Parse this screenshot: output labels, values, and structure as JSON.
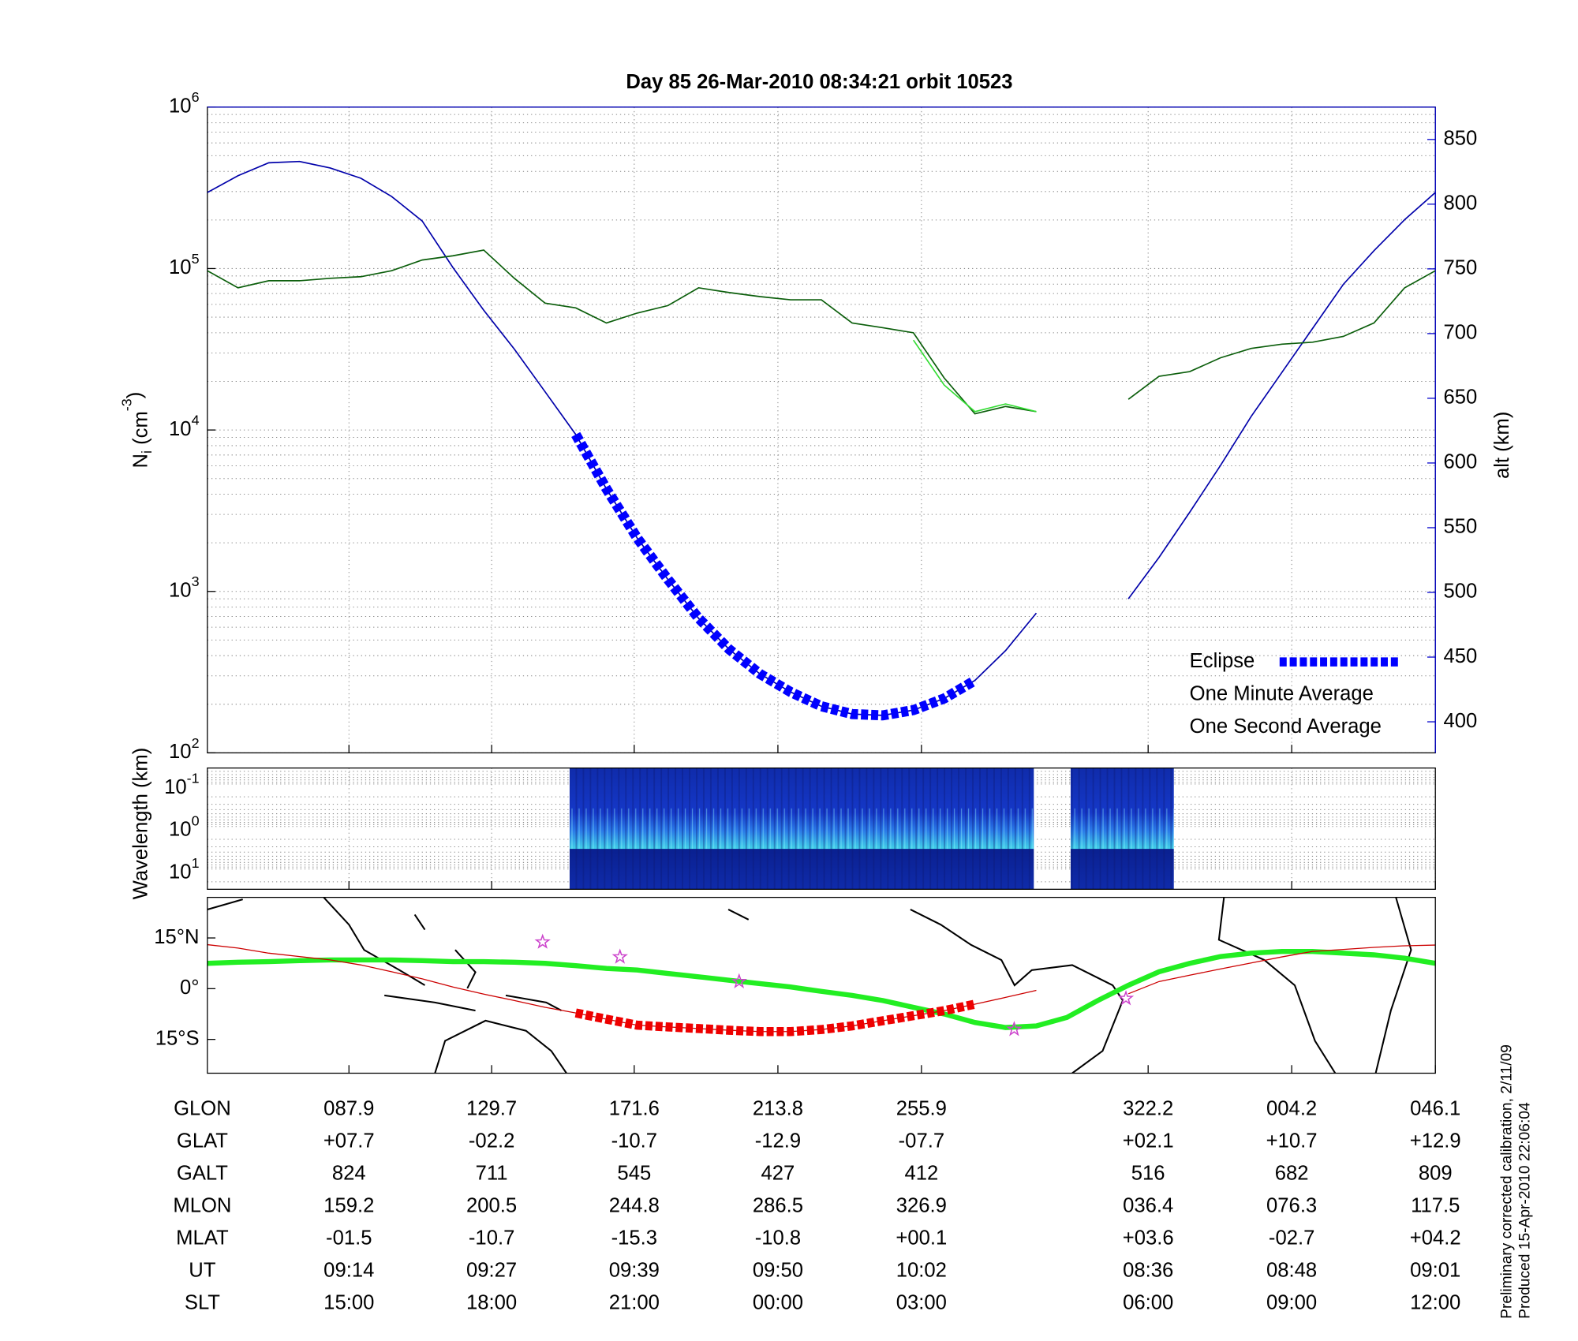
{
  "chart_data": [
    {
      "type": "line",
      "title": "Day 85  26-Mar-2010 08:34:21   orbit 10523",
      "ylabel": [
        "N",
        "i",
        " (cm",
        "-3",
        ")"
      ],
      "y2label": "alt (km)",
      "x": [
        0,
        2.5,
        5,
        7.5,
        10,
        12.5,
        15,
        17.5,
        20,
        22.5,
        25,
        27.5,
        30,
        32.5,
        35,
        37.5,
        40,
        42.5,
        45,
        47.5,
        50,
        52.5,
        55,
        57.5,
        60,
        62.5,
        65,
        67.5,
        70,
        72.5,
        75,
        77.5,
        80,
        82.5,
        85,
        87.5,
        90,
        92.5,
        95,
        97.5,
        100
      ],
      "xlim": [
        0,
        100
      ],
      "xticks": [
        11.53,
        23.15,
        34.76,
        46.46,
        58.15,
        76.61,
        88.3,
        100
      ],
      "ylim": [
        100,
        1000000
      ],
      "yscale": "log",
      "yticks": [
        {
          "value": 100,
          "label": "10",
          "exponent": "2"
        },
        {
          "value": 1000,
          "label": "10",
          "exponent": "3"
        },
        {
          "value": 10000,
          "label": "10",
          "exponent": "4"
        },
        {
          "value": 100000,
          "label": "10",
          "exponent": "5"
        },
        {
          "value": 1000000,
          "label": "10",
          "exponent": "6"
        }
      ],
      "y2lim": [
        376,
        875
      ],
      "y2ticks": [
        400,
        450,
        500,
        550,
        600,
        650,
        700,
        750,
        800,
        850
      ],
      "grid": true,
      "legend": "lower right",
      "series": [
        {
          "color": "#0000aa",
          "axis": "y2",
          "values": [
            809,
            822,
            832,
            833,
            828,
            820,
            806,
            787,
            751,
            718,
            688,
            655,
            622,
            580,
            542,
            510,
            480,
            456,
            437,
            423,
            412,
            406,
            405,
            409,
            418,
            432,
            455,
            484,
            null,
            null,
            495,
            527,
            562,
            598,
            636,
            670,
            704,
            738,
            764,
            788,
            809
          ]
        },
        {
          "name": "Eclipse",
          "color": "#0000ff",
          "legend_color": "#0000ff",
          "style": "thick-dashed",
          "axis": "y2",
          "values": [
            null,
            null,
            null,
            null,
            null,
            null,
            null,
            null,
            null,
            null,
            null,
            null,
            622,
            580,
            542,
            510,
            480,
            456,
            437,
            423,
            412,
            406,
            405,
            409,
            418,
            432,
            null,
            null,
            null,
            null,
            null,
            null,
            null,
            null,
            null,
            null,
            null,
            null,
            null,
            null,
            null
          ]
        },
        {
          "name": "One Minute Average",
          "color": "#0b5e0b",
          "legend_color": "#000000",
          "values": [
            97000,
            76000,
            84000,
            84000,
            87000,
            89000,
            97000,
            113000,
            120000,
            130000,
            87000,
            61000,
            57000,
            46000,
            53000,
            59000,
            76000,
            71000,
            67000,
            64000,
            64000,
            46000,
            43000,
            40000,
            21000,
            12600,
            14000,
            13000,
            null,
            null,
            15500,
            21500,
            23000,
            28000,
            32000,
            34000,
            35000,
            38000,
            46000,
            76000,
            97000
          ]
        },
        {
          "name": "One Second Average",
          "color": "#33dd33",
          "legend_color": "#22ee22",
          "values": [
            null,
            null,
            null,
            null,
            null,
            null,
            null,
            null,
            null,
            null,
            null,
            null,
            null,
            null,
            null,
            null,
            null,
            null,
            null,
            null,
            null,
            null,
            null,
            36000,
            19000,
            13000,
            14500,
            13000,
            null,
            null,
            null,
            null,
            null,
            null,
            null,
            null,
            null,
            null,
            null,
            null,
            null
          ]
        }
      ]
    },
    {
      "type": "spectrogram",
      "ylabel": "Wavelength (km)",
      "xlim": [
        0,
        100
      ],
      "xticks": [
        11.53,
        23.15,
        34.76,
        46.46,
        58.15,
        76.61,
        88.3,
        100
      ],
      "ylim": [
        0.042,
        30
      ],
      "yscale": "log",
      "yreversed": true,
      "yticks": [
        {
          "value": 0.1,
          "label": "10",
          "exponent": "-1"
        },
        {
          "value": 1,
          "label": "10",
          "exponent": "0"
        },
        {
          "value": 10,
          "label": "10",
          "exponent": "1"
        }
      ],
      "segments": [
        [
          29.5,
          67.3
        ],
        [
          70.3,
          78.7
        ]
      ]
    },
    {
      "type": "map-line",
      "x": [
        0,
        2.5,
        5,
        7.5,
        10,
        12.5,
        15,
        17.5,
        20,
        22.5,
        25,
        27.5,
        30,
        32.5,
        35,
        37.5,
        40,
        42.5,
        45,
        47.5,
        50,
        52.5,
        55,
        57.5,
        60,
        62.5,
        65,
        67.5,
        70,
        72.5,
        75,
        77.5,
        80,
        82.5,
        85,
        87.5,
        90,
        92.5,
        95,
        97.5,
        100
      ],
      "xlim": [
        0,
        100
      ],
      "xticks": [
        11.53,
        23.15,
        34.76,
        46.46,
        58.15,
        76.61,
        88.3,
        100
      ],
      "ylim": [
        -25,
        27
      ],
      "yticks": [
        {
          "value": 15,
          "label": "15°N"
        },
        {
          "value": 0,
          "label": "0°"
        },
        {
          "value": -15,
          "label": "15°S"
        }
      ],
      "series": [
        {
          "color": "#22ee22",
          "values": [
            7.5,
            7.8,
            8,
            8.3,
            8.5,
            8.5,
            8.5,
            8.3,
            8.0,
            8.0,
            7.8,
            7.5,
            6.8,
            6,
            5.5,
            4.5,
            3.5,
            2.5,
            1.5,
            0.5,
            -0.8,
            -2,
            -3.5,
            -5.5,
            -7.5,
            -10,
            -11.5,
            -11,
            -8.5,
            -3.5,
            1.0,
            5,
            7.5,
            9.5,
            10.5,
            11,
            11,
            10.5,
            10,
            9,
            7.5
          ]
        },
        {
          "color": "#cc0000",
          "values": [
            13,
            12,
            10.5,
            9.5,
            8.5,
            7.0,
            5.0,
            2.9,
            0.5,
            -1.6,
            -3.5,
            -5.5,
            -7.2,
            -9.0,
            -10.8,
            -11.3,
            -11.8,
            -12.3,
            -12.7,
            -12.7,
            -12.1,
            -11.0,
            -9.5,
            -8.0,
            -6.5,
            -4.6,
            -2.6,
            -0.5,
            null,
            null,
            -1.5,
            2.1,
            4.0,
            5.8,
            7.6,
            9.4,
            11.0,
            11.6,
            12.2,
            12.7,
            12.9
          ]
        },
        {
          "color": "#ee0000",
          "style": "thick-dashed",
          "values": [
            null,
            null,
            null,
            null,
            null,
            null,
            null,
            null,
            null,
            null,
            null,
            null,
            -7.2,
            -9.0,
            -10.8,
            -11.3,
            -11.8,
            -12.3,
            -12.7,
            -12.7,
            -12.1,
            -11.0,
            -9.5,
            -8.0,
            -6.5,
            -4.6,
            null,
            null,
            null,
            null,
            null,
            null,
            null,
            null,
            null,
            null,
            null,
            null,
            null,
            null,
            null
          ]
        }
      ],
      "markers": {
        "color": "#cc44cc",
        "x": [
          27.3,
          33.6,
          43.3,
          65.7,
          74.8
        ],
        "y": [
          13.8,
          9.4,
          2.1,
          -12,
          -2.9
        ]
      }
    }
  ],
  "table": {
    "rows": [
      {
        "label": "GLON",
        "values": [
          "087.9",
          "129.7",
          "171.6",
          "213.8",
          "255.9",
          "322.2",
          "004.2",
          "046.1"
        ]
      },
      {
        "label": "GLAT",
        "values": [
          "+07.7",
          "-02.2",
          "-10.7",
          "-12.9",
          "-07.7",
          "+02.1",
          "+10.7",
          "+12.9"
        ]
      },
      {
        "label": "GALT",
        "values": [
          "824",
          "711",
          "545",
          "427",
          "412",
          "516",
          "682",
          "809"
        ]
      },
      {
        "label": "MLON",
        "values": [
          "159.2",
          "200.5",
          "244.8",
          "286.5",
          "326.9",
          "036.4",
          "076.3",
          "117.5"
        ]
      },
      {
        "label": "MLAT",
        "values": [
          "-01.5",
          "-10.7",
          "-15.3",
          "-10.8",
          "+00.1",
          "+03.6",
          "-02.7",
          "+04.2"
        ]
      },
      {
        "label": "UT",
        "values": [
          "09:14",
          "09:27",
          "09:39",
          "09:50",
          "10:02",
          "08:36",
          "08:48",
          "09:01"
        ]
      },
      {
        "label": "SLT",
        "values": [
          "15:00",
          "18:00",
          "21:00",
          "00:00",
          "03:00",
          "06:00",
          "09:00",
          "12:00"
        ]
      }
    ]
  },
  "footnote": [
    "Preliminary corrected calibration, 2/11/09",
    "Produced 15-Apr-2010 22:06:04"
  ]
}
